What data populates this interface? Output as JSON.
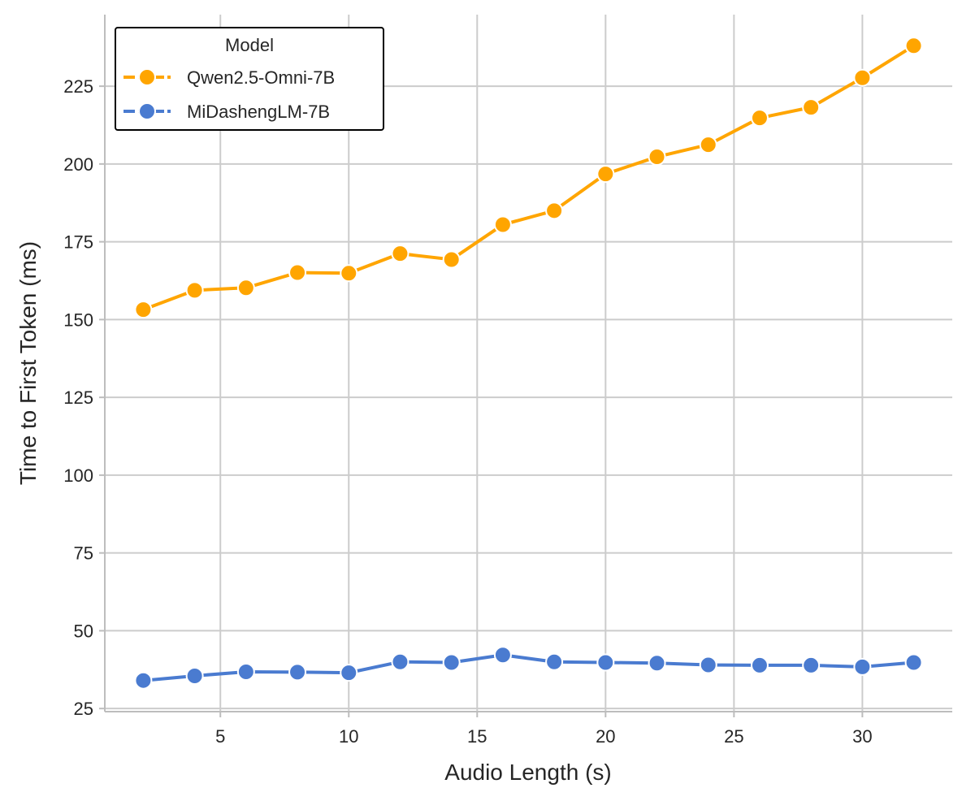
{
  "chart_data": {
    "type": "line",
    "title": "",
    "xlabel": "Audio Length (s)",
    "ylabel": "Time to First Token (ms)",
    "xlim": [
      0.5,
      33.5
    ],
    "ylim": [
      24,
      248
    ],
    "x_ticks": [
      5,
      10,
      15,
      20,
      25,
      30
    ],
    "y_ticks": [
      25,
      50,
      75,
      100,
      125,
      150,
      175,
      200,
      225
    ],
    "grid": true,
    "legend": {
      "title": "Model",
      "placement": "top-left"
    },
    "x": [
      2,
      4,
      6,
      8,
      10,
      12,
      14,
      16,
      18,
      20,
      22,
      24,
      26,
      28,
      30,
      32
    ],
    "series": [
      {
        "name": "Qwen2.5-Omni-7B",
        "color": "#FFA500",
        "values": [
          153.2,
          159.4,
          160.2,
          165.1,
          164.9,
          171.2,
          169.3,
          180.5,
          185.0,
          196.8,
          202.3,
          206.2,
          214.8,
          218.2,
          227.7,
          238.0
        ]
      },
      {
        "name": "MiDashengLM-7B",
        "color": "#4A7BD0",
        "values": [
          34.0,
          35.5,
          36.8,
          36.7,
          36.5,
          40.0,
          39.8,
          42.2,
          40.0,
          39.8,
          39.6,
          39.0,
          38.9,
          38.9,
          38.4,
          39.8
        ]
      }
    ]
  }
}
